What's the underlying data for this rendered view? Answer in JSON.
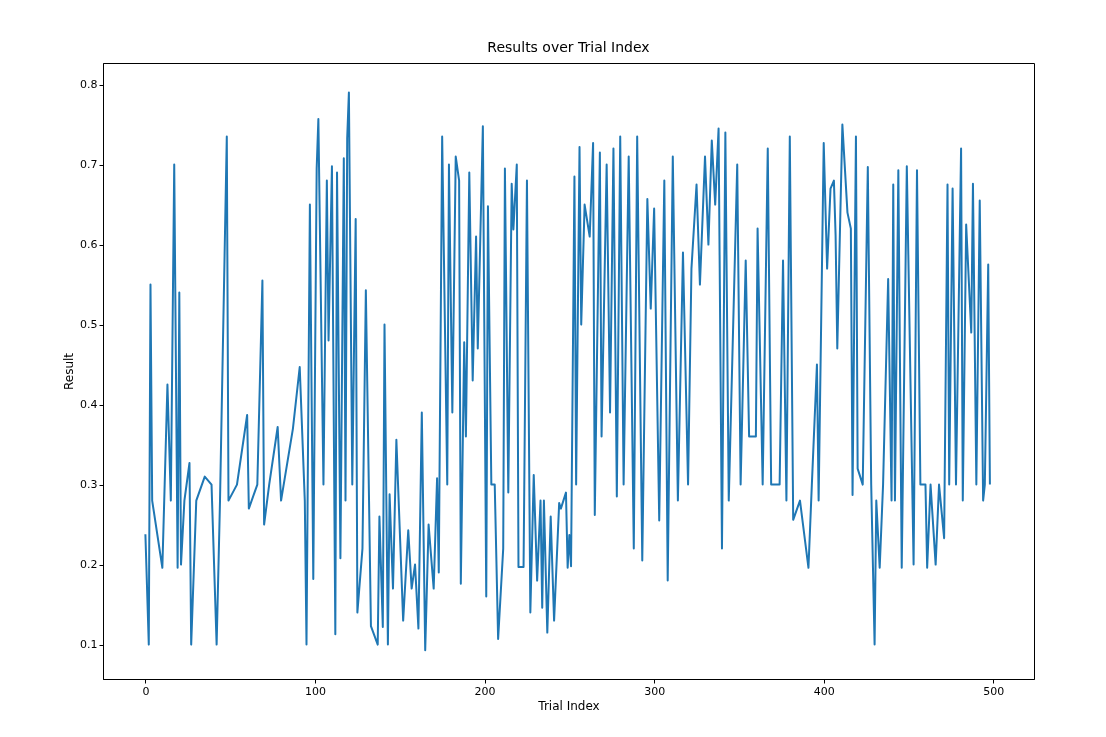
{
  "chart_data": {
    "type": "line",
    "title": "Results over Trial Index",
    "xlabel": "Trial Index",
    "ylabel": "Result",
    "x": [
      0,
      2,
      3,
      4,
      10,
      13,
      15,
      17,
      19,
      20,
      21,
      23,
      26,
      27,
      30,
      35,
      39,
      42,
      44,
      48,
      49,
      54,
      60,
      61,
      66,
      69,
      70,
      73,
      78,
      80,
      87,
      91,
      94,
      95,
      97,
      99,
      101,
      102,
      105,
      107,
      108,
      110,
      112,
      113,
      115,
      117,
      118,
      119,
      120,
      122,
      124,
      125,
      128,
      130,
      133,
      137,
      138,
      140,
      141,
      143,
      144,
      146,
      148,
      152,
      155,
      157,
      159,
      161,
      163,
      165,
      167,
      170,
      172,
      173,
      175,
      178,
      179,
      181,
      183,
      185,
      186,
      188,
      189,
      191,
      193,
      195,
      196,
      199,
      201,
      202,
      204,
      206,
      208,
      211,
      212,
      214,
      216,
      217,
      219,
      220,
      223,
      225,
      227,
      229,
      231,
      233,
      234,
      235,
      237,
      239,
      241,
      244,
      245,
      248,
      249,
      250,
      251,
      253,
      254,
      256,
      257,
      259,
      262,
      264,
      265,
      268,
      269,
      272,
      274,
      276,
      278,
      280,
      282,
      285,
      288,
      290,
      293,
      296,
      298,
      300,
      303,
      306,
      308,
      311,
      314,
      317,
      320,
      322,
      325,
      327,
      330,
      332,
      334,
      336,
      338,
      340,
      342,
      344,
      349,
      351,
      354,
      356,
      360,
      361,
      364,
      367,
      369,
      374,
      376,
      378,
      380,
      382,
      386,
      391,
      393,
      396,
      397,
      400,
      402,
      404,
      406,
      407,
      408,
      411,
      414,
      416,
      417,
      419,
      420,
      423,
      426,
      428,
      430,
      431,
      433,
      435,
      438,
      440,
      441,
      442,
      444,
      446,
      449,
      453,
      455,
      457,
      460,
      461,
      463,
      466,
      468,
      471,
      473,
      474,
      476,
      478,
      481,
      482,
      484,
      487,
      488,
      490,
      492,
      494,
      495,
      497,
      498
    ],
    "series": [
      {
        "color": "#1f77b4",
        "values": [
          0.238,
          0.1,
          0.55,
          0.28,
          0.196,
          0.425,
          0.28,
          0.7,
          0.196,
          0.54,
          0.2,
          0.28,
          0.327,
          0.1,
          0.28,
          0.31,
          0.3,
          0.1,
          0.28,
          0.735,
          0.28,
          0.3,
          0.387,
          0.27,
          0.3,
          0.555,
          0.25,
          0.3,
          0.372,
          0.28,
          0.37,
          0.447,
          0.28,
          0.1,
          0.65,
          0.182,
          0.695,
          0.757,
          0.3,
          0.68,
          0.48,
          0.698,
          0.113,
          0.69,
          0.208,
          0.708,
          0.28,
          0.733,
          0.79,
          0.3,
          0.632,
          0.14,
          0.22,
          0.543,
          0.123,
          0.1,
          0.26,
          0.122,
          0.5,
          0.1,
          0.288,
          0.17,
          0.356,
          0.13,
          0.243,
          0.17,
          0.2,
          0.12,
          0.39,
          0.093,
          0.25,
          0.17,
          0.308,
          0.19,
          0.735,
          0.3,
          0.7,
          0.39,
          0.71,
          0.68,
          0.176,
          0.478,
          0.36,
          0.69,
          0.43,
          0.61,
          0.47,
          0.748,
          0.16,
          0.648,
          0.3,
          0.3,
          0.107,
          0.22,
          0.695,
          0.29,
          0.676,
          0.619,
          0.7,
          0.197,
          0.197,
          0.68,
          0.14,
          0.312,
          0.18,
          0.28,
          0.146,
          0.28,
          0.115,
          0.26,
          0.13,
          0.277,
          0.27,
          0.29,
          0.196,
          0.237,
          0.198,
          0.685,
          0.3,
          0.722,
          0.5,
          0.65,
          0.61,
          0.727,
          0.262,
          0.715,
          0.36,
          0.7,
          0.39,
          0.72,
          0.285,
          0.735,
          0.3,
          0.71,
          0.22,
          0.735,
          0.205,
          0.657,
          0.52,
          0.645,
          0.255,
          0.68,
          0.18,
          0.71,
          0.28,
          0.59,
          0.3,
          0.57,
          0.675,
          0.55,
          0.71,
          0.6,
          0.73,
          0.65,
          0.745,
          0.22,
          0.74,
          0.28,
          0.7,
          0.3,
          0.58,
          0.36,
          0.36,
          0.62,
          0.3,
          0.72,
          0.3,
          0.3,
          0.58,
          0.28,
          0.735,
          0.256,
          0.28,
          0.196,
          0.3,
          0.45,
          0.28,
          0.727,
          0.57,
          0.67,
          0.68,
          0.612,
          0.47,
          0.75,
          0.64,
          0.62,
          0.287,
          0.735,
          0.32,
          0.3,
          0.697,
          0.3,
          0.1,
          0.28,
          0.196,
          0.3,
          0.557,
          0.28,
          0.675,
          0.28,
          0.693,
          0.196,
          0.698,
          0.2,
          0.693,
          0.3,
          0.3,
          0.196,
          0.3,
          0.2,
          0.3,
          0.233,
          0.675,
          0.3,
          0.67,
          0.3,
          0.72,
          0.28,
          0.625,
          0.49,
          0.676,
          0.3,
          0.655,
          0.28,
          0.3,
          0.575,
          0.3
        ]
      }
    ],
    "xlim": [
      -25,
      524
    ],
    "ylim": [
      0.057,
      0.827
    ],
    "xticks": [
      0,
      100,
      200,
      300,
      400,
      500
    ],
    "yticks": [
      0.1,
      0.2,
      0.3,
      0.4,
      0.5,
      0.6,
      0.7,
      0.8
    ],
    "grid": false
  }
}
